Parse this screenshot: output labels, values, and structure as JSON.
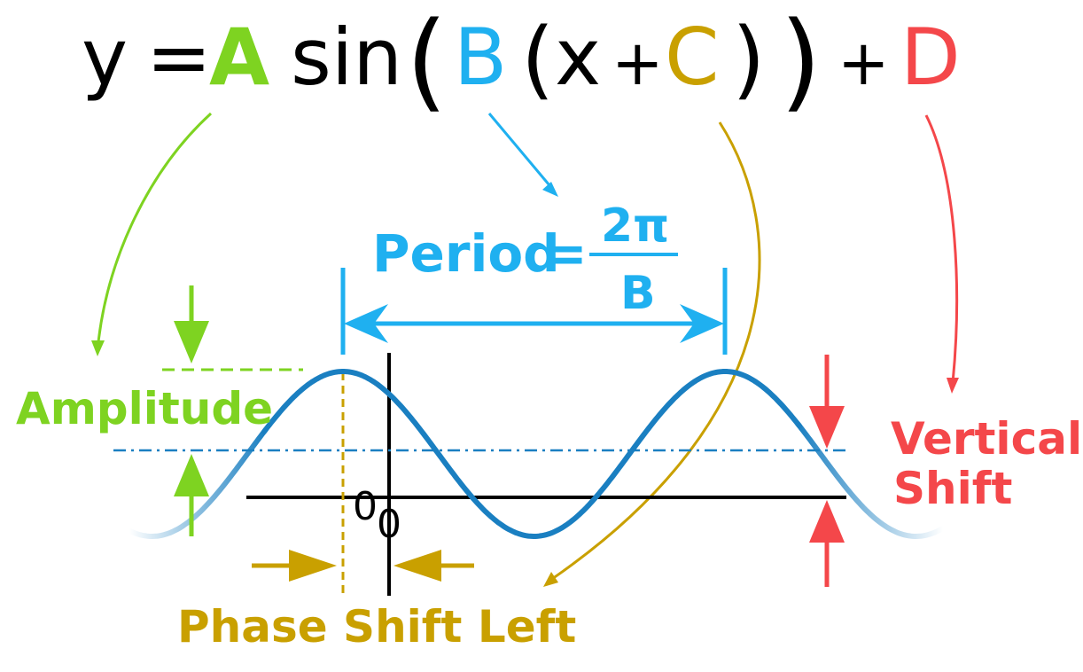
{
  "equation": {
    "y": "y",
    "eq": "=",
    "A": "A",
    "sin": "sin",
    "lparen_outer": "(",
    "B": "B",
    "lparen_inner": "(",
    "x": "x",
    "plus1": "+",
    "C": "C",
    "rparen_inner": ")",
    "rparen_outer": ")",
    "plus2": "+",
    "D": "D"
  },
  "labels": {
    "amplitude": "Amplitude",
    "period": "Period",
    "period_eq": "=",
    "period_num": "2π",
    "period_den": "B",
    "vertical_shift_1": "Vertical",
    "vertical_shift_2": "Shift",
    "phase_shift": "Phase Shift Left",
    "origin_1": "0",
    "origin_2": "0"
  },
  "colors": {
    "A": "#7ed321",
    "B": "#1fb0f0",
    "C": "#c9a000",
    "D": "#f4474a",
    "curve": "#1a7fc1",
    "midline": "#1a7fc1",
    "axis": "#000000"
  }
}
